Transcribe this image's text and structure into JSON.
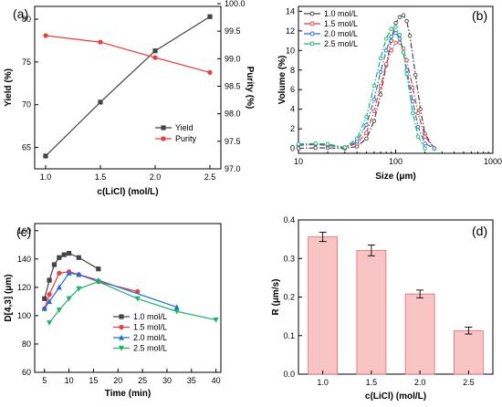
{
  "chart_data": [
    {
      "type": "line",
      "panel_label": "(a)",
      "xlabel": "c(LiCl) (mol/L)",
      "ylabel": "Yield (%)",
      "y2label": "Purity (%)",
      "xlim": [
        0.9,
        2.6
      ],
      "ylim": [
        62.5,
        81.5
      ],
      "y2lim": [
        97.0,
        99.95
      ],
      "xticks": [
        "1.0",
        "1.5",
        "2.0",
        "2.5"
      ],
      "yticks": [
        "65",
        "70",
        "75",
        "80"
      ],
      "y2ticks": [
        "97.0",
        "97.5",
        "98.0",
        "98.5",
        "99.0",
        "99.5",
        "100.0"
      ],
      "x": [
        1.0,
        1.5,
        2.0,
        2.5
      ],
      "series": [
        {
          "name": "Yield",
          "axis": "left",
          "color": "#444444",
          "marker": "square",
          "values": [
            64.0,
            70.3,
            76.3,
            80.3
          ]
        },
        {
          "name": "Purity",
          "axis": "right",
          "color": "#ee3b3b",
          "marker": "circle",
          "values": [
            99.42,
            99.3,
            99.02,
            98.75
          ]
        }
      ],
      "legend": "bottom-right",
      "grid": false
    },
    {
      "type": "line",
      "panel_label": "(b)",
      "xlabel": "Size (μm)",
      "ylabel": "Volume (%)",
      "xscale": "log",
      "xlim": [
        10,
        1000
      ],
      "ylim": [
        -0.5,
        14.5
      ],
      "xticks": [
        "10",
        "100",
        "1000"
      ],
      "yticks": [
        "0",
        "2",
        "4",
        "6",
        "8",
        "10",
        "12",
        "14"
      ],
      "series": [
        {
          "name": "1.0 mol/L",
          "color": "#444444",
          "marker": "square",
          "x": [
            10,
            15,
            20,
            30,
            40,
            50,
            60,
            70,
            80,
            90,
            100,
            110,
            120,
            130,
            140,
            160,
            180,
            200,
            250
          ],
          "values": [
            0.0,
            0.05,
            0.05,
            0.0,
            0.2,
            1.0,
            2.8,
            5.5,
            8.5,
            11.0,
            12.8,
            13.4,
            13.6,
            13.0,
            11.5,
            7.5,
            4.0,
            1.5,
            0.0
          ]
        },
        {
          "name": "1.5 mol/L",
          "color": "#ee3b3b",
          "marker": "circle",
          "x": [
            10,
            15,
            20,
            30,
            40,
            50,
            60,
            70,
            80,
            90,
            100,
            110,
            120,
            130,
            150,
            170,
            200,
            250
          ],
          "values": [
            0.3,
            0.4,
            0.3,
            0.1,
            0.5,
            1.6,
            3.8,
            6.4,
            8.6,
            10.0,
            10.8,
            10.8,
            10.2,
            9.0,
            6.2,
            3.6,
            1.2,
            0.0
          ]
        },
        {
          "name": "2.0 mol/L",
          "color": "#1f6fd6",
          "marker": "triangle",
          "x": [
            10,
            15,
            20,
            30,
            40,
            50,
            60,
            70,
            80,
            90,
            100,
            110,
            120,
            130,
            150,
            170,
            200,
            250
          ],
          "values": [
            0.35,
            0.45,
            0.35,
            0.1,
            0.7,
            2.4,
            5.0,
            7.8,
            10.0,
            11.4,
            11.8,
            11.2,
            9.8,
            8.0,
            4.8,
            2.2,
            0.5,
            0.0
          ]
        },
        {
          "name": "2.5 mol/L",
          "color": "#19b36a",
          "marker": "triangle-down",
          "x": [
            10,
            15,
            20,
            30,
            40,
            50,
            60,
            70,
            80,
            90,
            100,
            110,
            120,
            130,
            150,
            170,
            200
          ],
          "values": [
            0.45,
            0.5,
            0.45,
            0.1,
            1.0,
            3.2,
            6.4,
            9.2,
            11.2,
            12.2,
            12.4,
            11.6,
            9.8,
            7.6,
            3.6,
            1.2,
            0.0
          ]
        }
      ],
      "legend": "top-left",
      "grid": false
    },
    {
      "type": "line",
      "panel_label": "(c)",
      "xlabel": "Time (min)",
      "ylabel": "D[4,3] (μm)",
      "xlim": [
        3,
        41
      ],
      "ylim": [
        60,
        165
      ],
      "xticks": [
        "5",
        "10",
        "15",
        "20",
        "25",
        "30",
        "35",
        "40"
      ],
      "yticks": [
        "60",
        "80",
        "100",
        "120",
        "140",
        "160"
      ],
      "series": [
        {
          "name": "1.0 mol/L",
          "color": "#444444",
          "marker": "square",
          "x": [
            5,
            6,
            7,
            8,
            9,
            10,
            12,
            16
          ],
          "values": [
            112,
            125,
            136,
            141,
            143,
            144,
            141,
            133
          ]
        },
        {
          "name": "1.5 mol/L",
          "color": "#ee3b3b",
          "marker": "circle",
          "x": [
            5,
            6,
            8,
            10,
            12,
            16,
            24
          ],
          "values": [
            105,
            115,
            130,
            131,
            129,
            124,
            117
          ]
        },
        {
          "name": "2.0 mol/L",
          "color": "#1f6fd6",
          "marker": "triangle",
          "x": [
            5,
            6,
            8,
            10,
            12,
            16,
            32
          ],
          "values": [
            105,
            110,
            120,
            130,
            129,
            125,
            106
          ]
        },
        {
          "name": "2.5 mol/L",
          "color": "#19b36a",
          "marker": "triangle-down",
          "x": [
            6,
            8,
            10,
            12,
            16,
            24,
            32,
            40
          ],
          "values": [
            95,
            104,
            112,
            119,
            124,
            112,
            103,
            97
          ]
        }
      ],
      "legend": "bottom-left",
      "grid": false
    },
    {
      "type": "bar",
      "panel_label": "(d)",
      "xlabel": "c(LiCl) (mol/L)",
      "ylabel": "R (μm/s)",
      "categories": [
        "1.0",
        "1.5",
        "2.0",
        "2.5"
      ],
      "values": [
        0.356,
        0.321,
        0.208,
        0.113
      ],
      "errors": [
        0.012,
        0.014,
        0.01,
        0.009
      ],
      "ylim": [
        0.0,
        0.4
      ],
      "yticks": [
        "0.0",
        "0.1",
        "0.2",
        "0.3",
        "0.4"
      ],
      "bar_color": "#f9c4c4",
      "bar_edge": "#e56b6b",
      "grid": false
    }
  ]
}
